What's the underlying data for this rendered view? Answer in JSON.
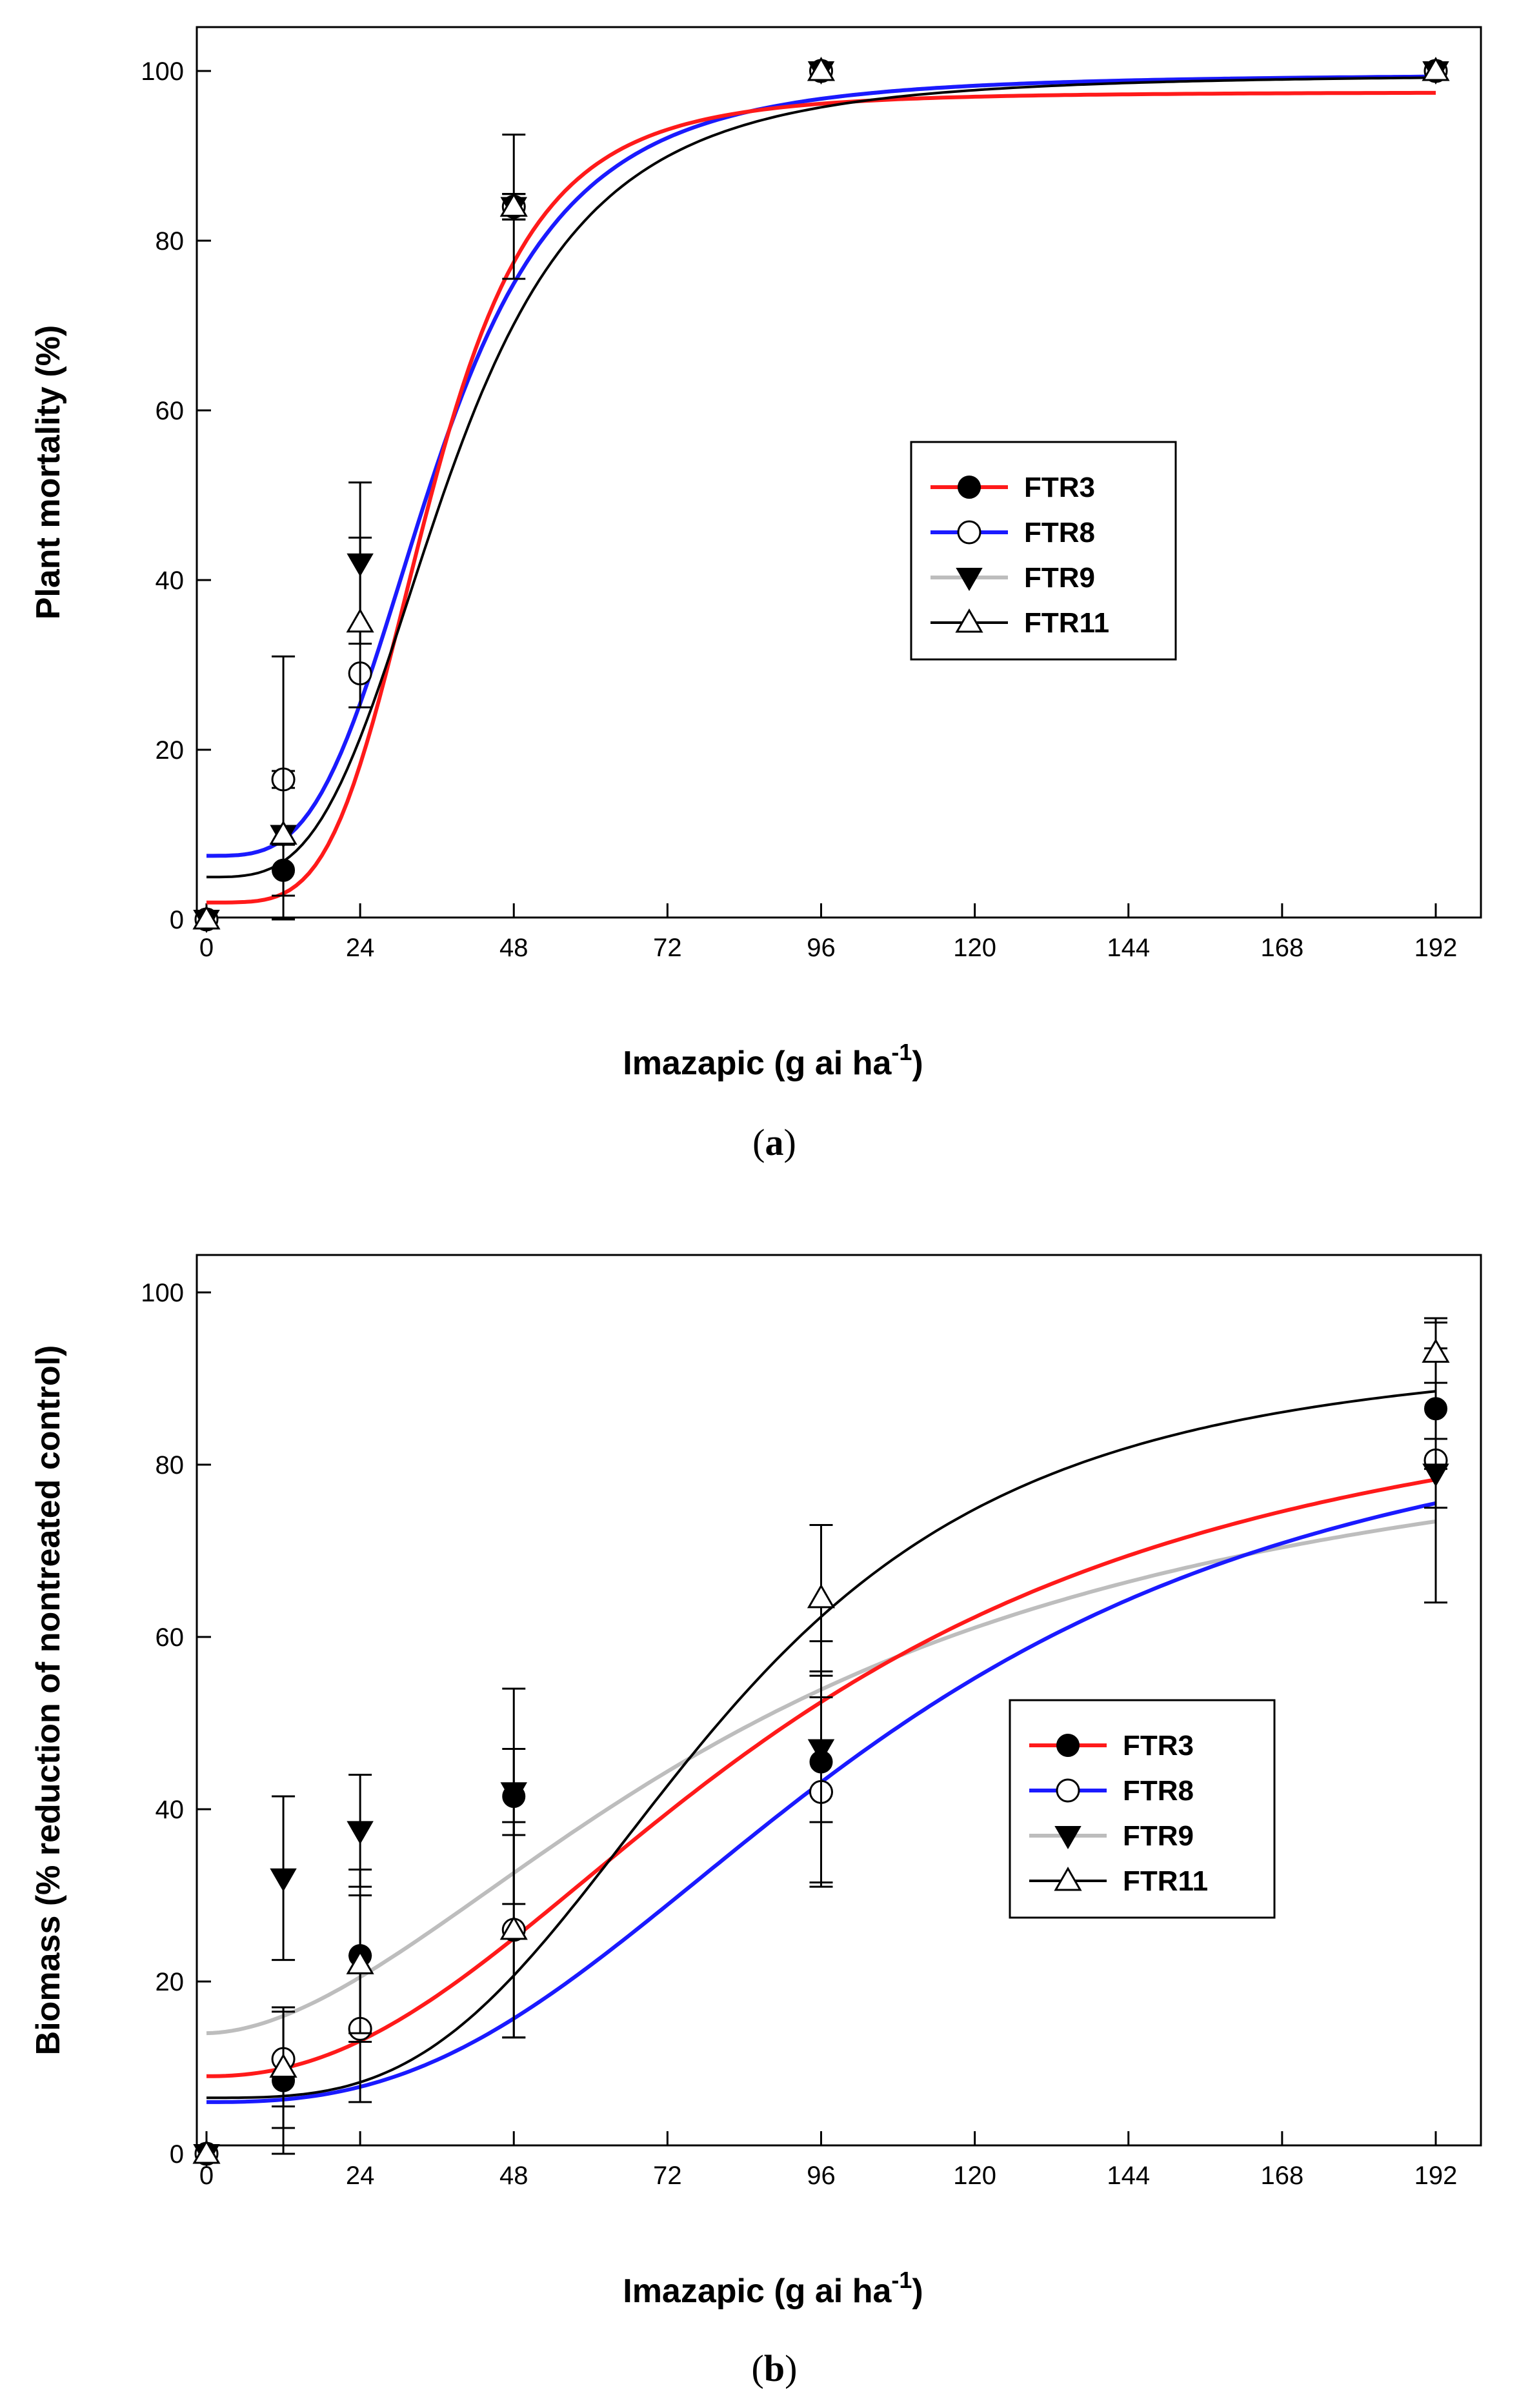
{
  "chart_data": [
    {
      "id": "a",
      "type": "scatter",
      "caption_letter": "a",
      "xlabel": "Imazapic (g ai ha",
      "xlabel_sup": "-1",
      "xlabel_suffix": ")",
      "ylabel": "Plant mortality (%)",
      "xlim": [
        0,
        200
      ],
      "ylim": [
        0,
        105
      ],
      "xticks": [
        0,
        24,
        48,
        72,
        96,
        120,
        144,
        168,
        192
      ],
      "yticks": [
        0,
        20,
        40,
        60,
        80,
        100
      ],
      "x": [
        0,
        12,
        24,
        48,
        96,
        192
      ],
      "series": [
        {
          "name": "FTR3",
          "marker": "filled-circle",
          "line_color": "#ff1a1a",
          "values": [
            0,
            5.8,
            29,
            84,
            100,
            100
          ],
          "err": [
            0,
            3,
            0,
            1.5,
            0,
            0
          ],
          "curve": {
            "bottom": 2,
            "top": 97.5,
            "ec50": 35,
            "slope": 4.2
          }
        },
        {
          "name": "FTR8",
          "marker": "open-circle",
          "line_color": "#1a1aff",
          "values": [
            0,
            16.5,
            29,
            84,
            100,
            100
          ],
          "err": [
            0,
            1,
            0,
            1.5,
            0,
            0
          ],
          "curve": {
            "bottom": 7.5,
            "top": 99.6,
            "ec50": 36,
            "slope": 3.5
          }
        },
        {
          "name": "FTR9",
          "marker": "filled-triangle-down",
          "line_color": "#bdbdbd",
          "values": [
            0,
            10,
            42,
            84,
            100,
            100
          ],
          "err": [
            0,
            0,
            9.5,
            1.5,
            0,
            0
          ],
          "curve": {
            "bottom": 7.5,
            "top": 99.6,
            "ec50": 36,
            "slope": 3.5
          }
        },
        {
          "name": "FTR11",
          "marker": "open-triangle-up",
          "line_color": "#000000",
          "values": [
            0,
            10,
            35,
            84,
            100,
            100
          ],
          "err": [
            0,
            21,
            10,
            8.5,
            0,
            0
          ],
          "curve": {
            "bottom": 5,
            "top": 99.6,
            "ec50": 38,
            "slope": 3.4
          }
        }
      ]
    },
    {
      "id": "b",
      "type": "scatter",
      "caption_letter": "b",
      "xlabel": "Imazapic (g ai ha",
      "xlabel_sup": "-1",
      "xlabel_suffix": ")",
      "ylabel": "Biomass (% reduction of nontreated control)",
      "xlim": [
        0,
        200
      ],
      "ylim": [
        0,
        105
      ],
      "xticks": [
        0,
        24,
        48,
        72,
        96,
        120,
        144,
        168,
        192
      ],
      "yticks": [
        0,
        20,
        40,
        60,
        80,
        100
      ],
      "x": [
        0,
        12,
        24,
        48,
        96,
        192
      ],
      "series": [
        {
          "name": "FTR3",
          "marker": "filled-circle",
          "line_color": "#ff1a1a",
          "values": [
            0,
            8.5,
            23,
            41.5,
            45.5,
            86.5
          ],
          "err": [
            0,
            8.5,
            10,
            12.5,
            14,
            7
          ],
          "curve": {
            "bottom": 9,
            "top": 92,
            "ec50": 92,
            "slope": 2.2
          }
        },
        {
          "name": "FTR8",
          "marker": "open-circle",
          "line_color": "#1a1aff",
          "values": [
            0,
            11,
            14.5,
            26,
            42,
            80.5
          ],
          "err": [
            0,
            5.5,
            8.5,
            12.5,
            11,
            16.5
          ],
          "curve": {
            "bottom": 6,
            "top": 90,
            "ec50": 105,
            "slope": 2.6
          }
        },
        {
          "name": "FTR9",
          "marker": "filled-triangle-down",
          "line_color": "#bdbdbd",
          "values": [
            0,
            32,
            37.5,
            42,
            47,
            79
          ],
          "err": [
            0,
            9.5,
            6.5,
            5,
            8.5,
            4
          ],
          "curve": {
            "bottom": 14,
            "top": 88,
            "ec50": 88,
            "slope": 1.8
          }
        },
        {
          "name": "FTR11",
          "marker": "open-triangle-up",
          "line_color": "#000000",
          "values": [
            0,
            10,
            22,
            26,
            64.5,
            93
          ],
          "err": [
            0,
            7,
            8,
            12.5,
            8.5,
            3.5
          ],
          "curve": {
            "bottom": 6.5,
            "top": 93.5,
            "ec50": 80,
            "slope": 3.2
          }
        }
      ]
    }
  ]
}
